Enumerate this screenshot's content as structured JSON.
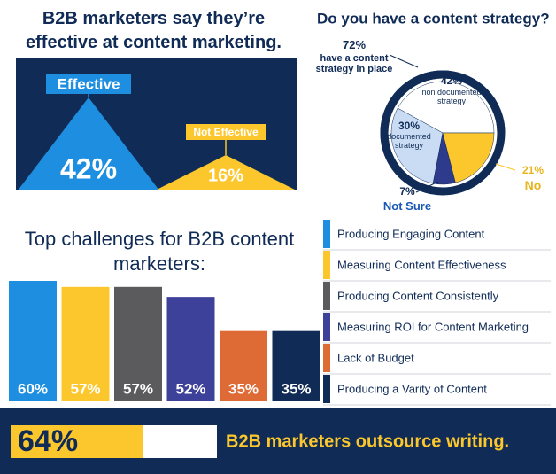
{
  "chart_data": [
    {
      "type": "triangle",
      "title": "B2B marketers say they’re effective at content marketing.",
      "categories": [
        "Effective",
        "Not Effective"
      ],
      "values": [
        42,
        16
      ],
      "value_labels": [
        "42%",
        "16%"
      ],
      "colors": [
        "#1e8fe0",
        "#fcc72c"
      ],
      "background": "#0f2b56"
    },
    {
      "type": "pie",
      "title": "Do you have a content strategy?",
      "categories": [
        "non documented strategy",
        "documented strategy",
        "Not Sure",
        "No"
      ],
      "values": [
        42,
        30,
        7,
        21
      ],
      "value_labels": [
        "42%",
        "30%",
        "7%",
        "21%"
      ],
      "colors": [
        "#ffffff",
        "#c9dcf3",
        "#2e3a8c",
        "#fcc72c"
      ],
      "annotation": {
        "value": 72,
        "label": "72%",
        "text": "have a content strategy in place"
      }
    },
    {
      "type": "bar",
      "title": "Top challenges for B2B content marketers:",
      "categories": [
        "Producing Engaging Content",
        "Measuring Content Effectiveness",
        "Producing Content Consistently",
        "Measuring ROI for Content Marketing",
        "Lack of Budget",
        "Producing a Varity of Content"
      ],
      "values": [
        60,
        57,
        57,
        52,
        35,
        35
      ],
      "value_labels": [
        "60%",
        "57%",
        "57%",
        "52%",
        "35%",
        "35%"
      ],
      "colors": [
        "#1e8fe0",
        "#fcc72c",
        "#5b5b5d",
        "#3e4199",
        "#de6b35",
        "#0f2b56"
      ],
      "ylim": [
        0,
        60
      ]
    },
    {
      "type": "progress",
      "title": "B2B marketers outsource writing.",
      "values": [
        64
      ],
      "value_labels": [
        "64%"
      ],
      "xlim": [
        0,
        100
      ],
      "color": "#fcc72c",
      "background": "#0f2b56"
    }
  ]
}
